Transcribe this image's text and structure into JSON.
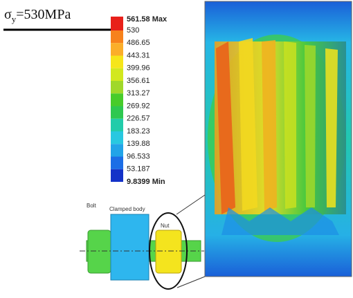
{
  "annotation": {
    "symbol": "σ",
    "subscript": "y",
    "text": "=530MPa"
  },
  "legend": {
    "labels": [
      "561.58 Max",
      "530",
      "486.65",
      "443.31",
      "399.96",
      "356.61",
      "313.27",
      "269.92",
      "226.57",
      "183.23",
      "139.88",
      "96.533",
      "53.187",
      "9.8399 Min"
    ]
  },
  "diagram": {
    "bolt": "Bolt",
    "clamped_body": "Clamped body",
    "nut": "Nut"
  }
}
